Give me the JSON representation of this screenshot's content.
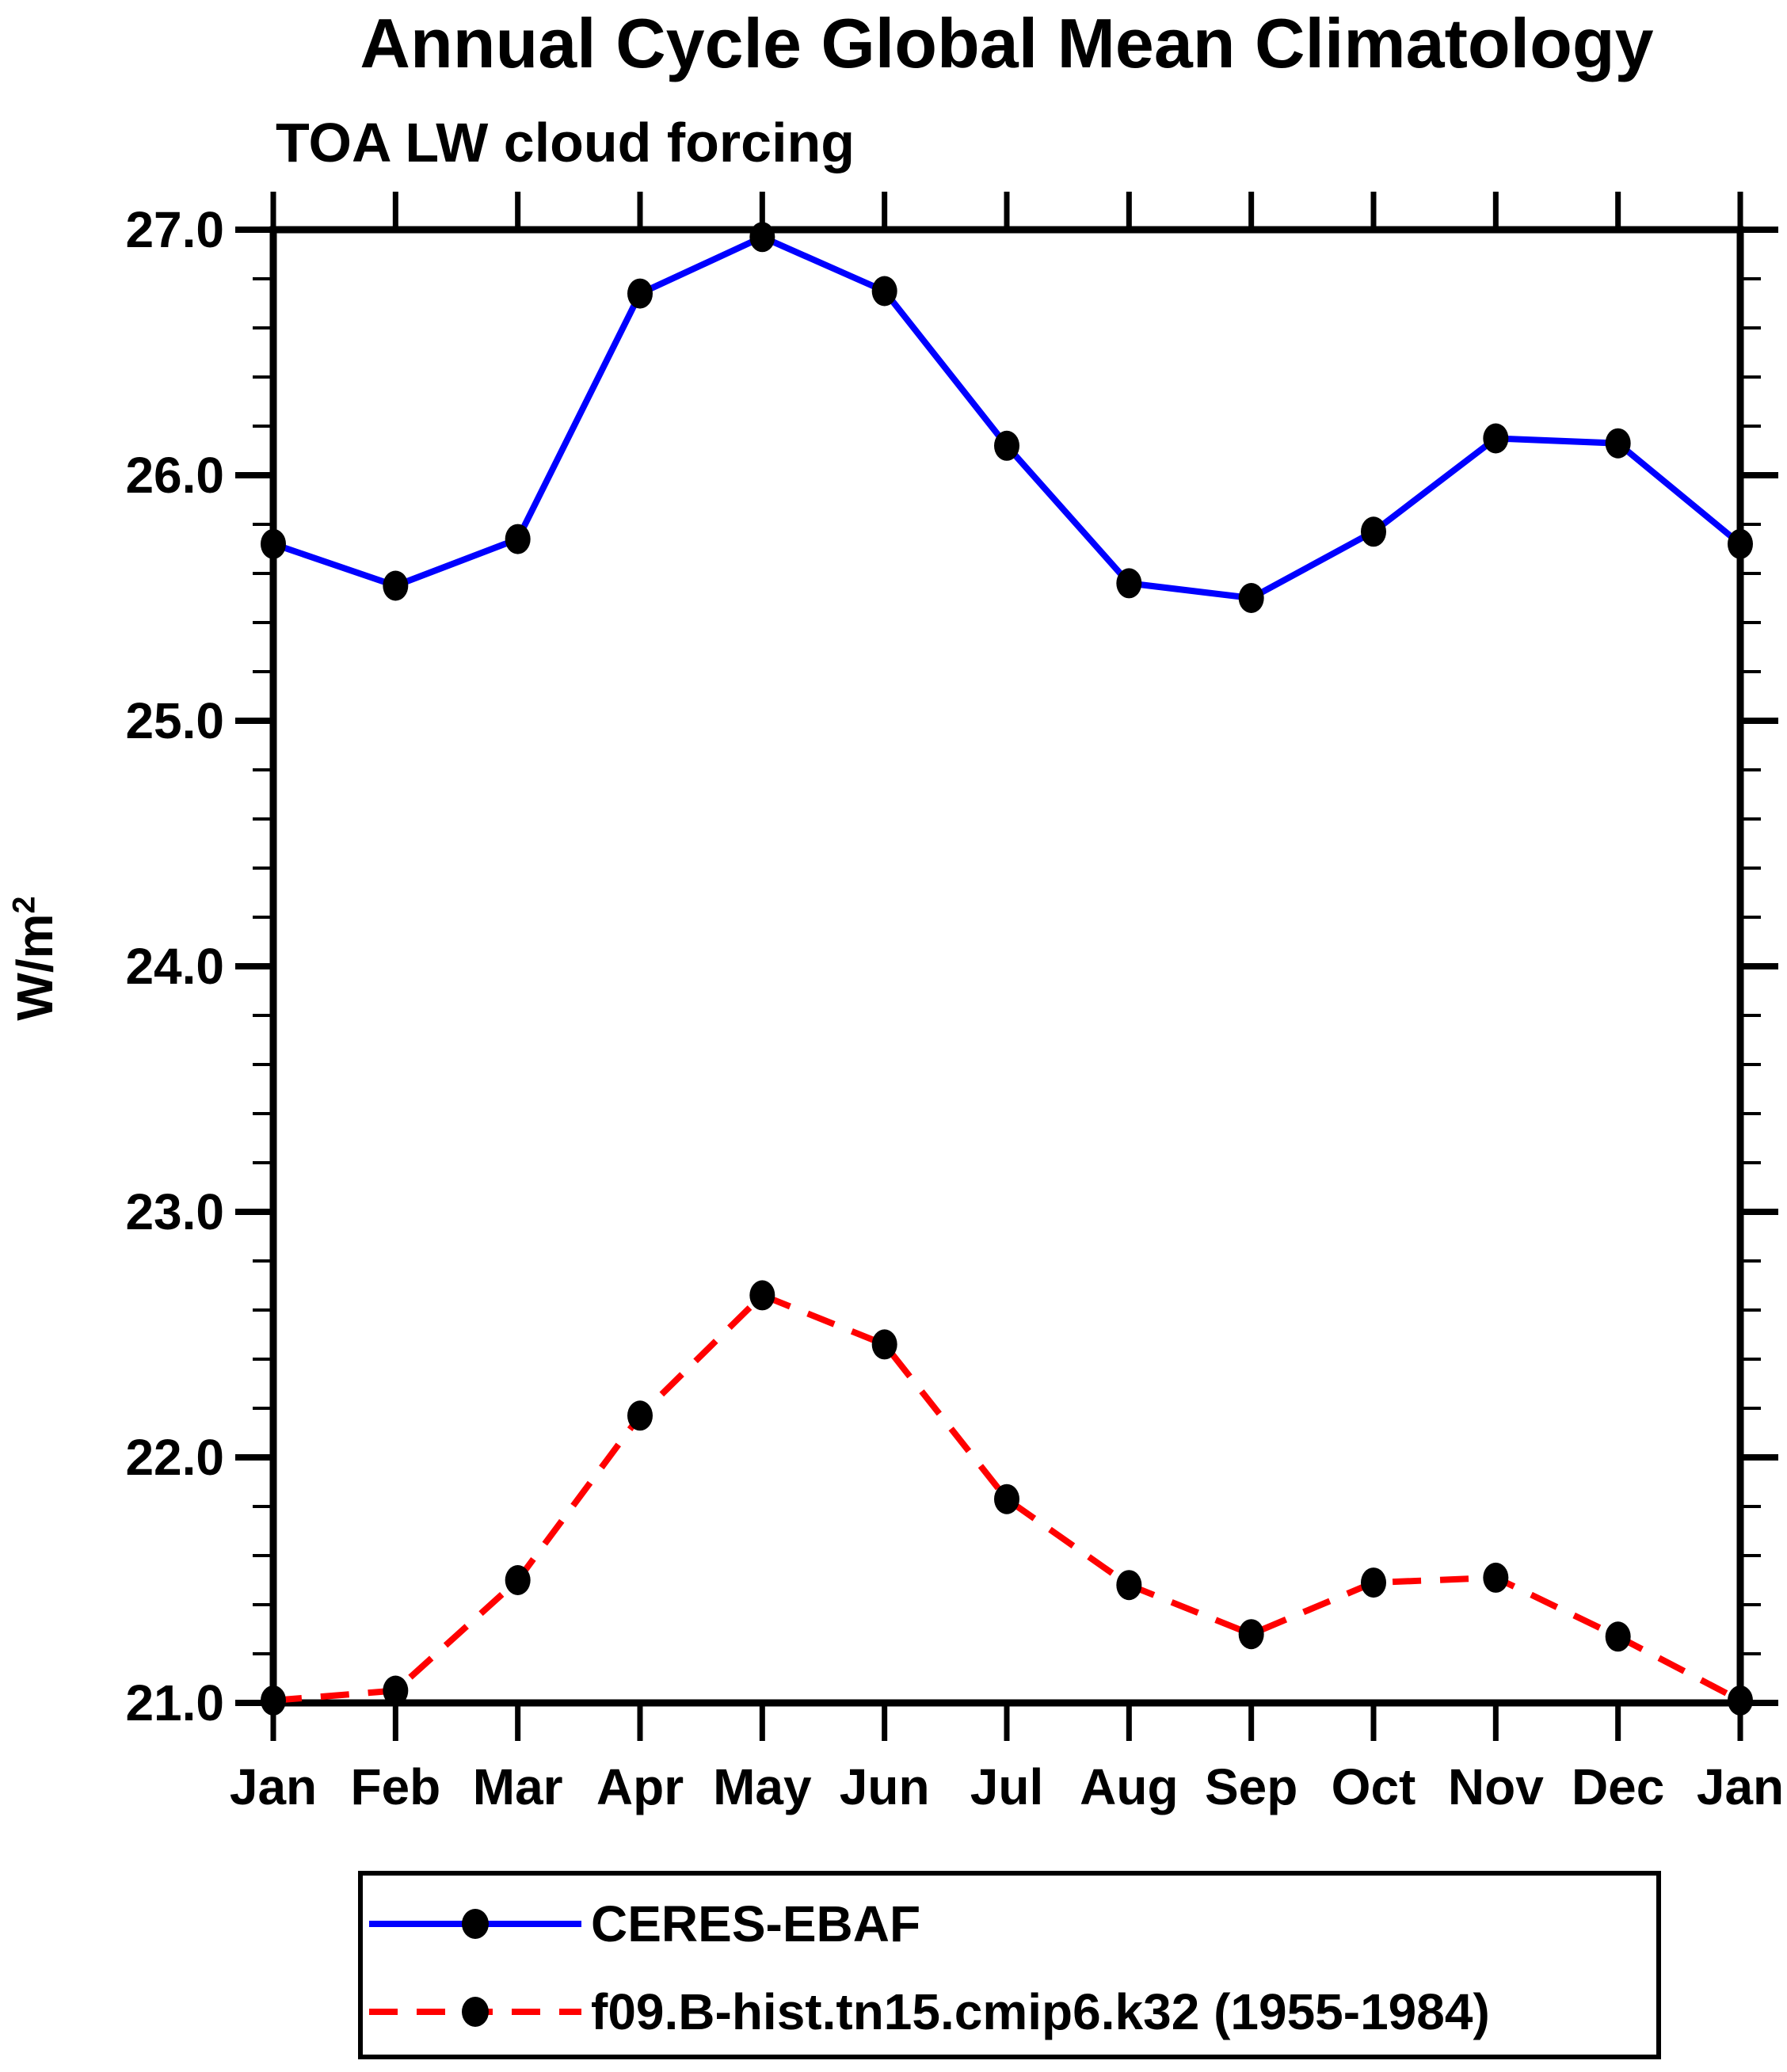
{
  "chart_data": {
    "type": "line",
    "title": "Annual Cycle Global Mean Climatology",
    "subtitle": "TOA LW cloud forcing",
    "ylabel_base": "W/m",
    "ylabel_exp": "2",
    "categories": [
      "Jan",
      "Feb",
      "Mar",
      "Apr",
      "May",
      "Jun",
      "Jul",
      "Aug",
      "Sep",
      "Oct",
      "Nov",
      "Dec",
      "Jan"
    ],
    "ylim": [
      21.0,
      27.0
    ],
    "ytick_major": 1.0,
    "ytick_minor": 0.2,
    "ytick_labels": [
      "21.0",
      "22.0",
      "23.0",
      "24.0",
      "25.0",
      "26.0",
      "27.0"
    ],
    "grid": false,
    "legend_position": "bottom",
    "axis_color": "#000000",
    "background_color": "#ffffff",
    "series": [
      {
        "name": "CERES-EBAF",
        "color": "#0000ff",
        "style": "solid",
        "marker": "filled-circle",
        "marker_color": "#000000",
        "values": [
          25.72,
          25.55,
          25.74,
          26.74,
          26.97,
          26.75,
          26.12,
          25.56,
          25.5,
          25.77,
          26.15,
          26.13,
          25.72
        ]
      },
      {
        "name": "f09.B-hist.tn15.cmip6.k32 (1955-1984)",
        "color": "#ff0000",
        "style": "dashed",
        "marker": "filled-circle",
        "marker_color": "#000000",
        "values": [
          21.01,
          21.05,
          21.5,
          22.17,
          22.66,
          22.46,
          21.83,
          21.48,
          21.28,
          21.49,
          21.51,
          21.27,
          21.01
        ]
      }
    ]
  }
}
